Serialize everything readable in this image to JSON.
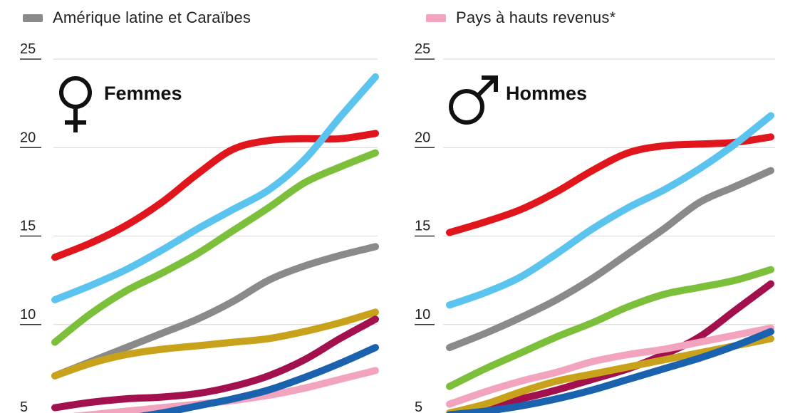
{
  "legend": [
    {
      "label": "Amérique latine et Caraïbes",
      "color": "#8a8a8a"
    },
    {
      "label": "Pays à hauts revenus*",
      "color": "#f2a3bd"
    }
  ],
  "chart_data": [
    {
      "type": "line",
      "title": "Femmes",
      "icon": "female-symbol-icon",
      "yticks": [
        5,
        10,
        15,
        20,
        25
      ],
      "ylim": [
        5,
        25
      ],
      "grid": true,
      "series": [
        {
          "color": "#e0161c",
          "values": [
            13.8,
            14.6,
            15.6,
            16.9,
            18.5,
            19.9,
            20.4,
            20.5,
            20.5,
            20.8
          ]
        },
        {
          "color": "#5bc4ee",
          "values": [
            11.4,
            12.2,
            13.1,
            14.2,
            15.4,
            16.5,
            17.6,
            19.3,
            21.7,
            24.0
          ]
        },
        {
          "color": "#7bbf3a",
          "values": [
            9.0,
            10.6,
            11.9,
            12.9,
            14.0,
            15.3,
            16.6,
            18.0,
            18.9,
            19.7
          ]
        },
        {
          "color": "#8a8a8a",
          "values": [
            7.1,
            7.9,
            8.7,
            9.5,
            10.3,
            11.3,
            12.5,
            13.3,
            13.9,
            14.4
          ]
        },
        {
          "color": "#c9a21c",
          "values": [
            7.1,
            7.8,
            8.3,
            8.6,
            8.8,
            9.0,
            9.2,
            9.6,
            10.1,
            10.7
          ]
        },
        {
          "color": "#a3104e",
          "values": [
            5.3,
            5.6,
            5.8,
            5.9,
            6.1,
            6.5,
            7.1,
            8.0,
            9.2,
            10.3
          ]
        },
        {
          "color": "#f2a3bd",
          "values": [
            4.7,
            4.9,
            5.1,
            5.3,
            5.5,
            5.7,
            6.0,
            6.4,
            6.9,
            7.4
          ]
        },
        {
          "color": "#1a62ad",
          "values": [
            4.3,
            4.5,
            4.7,
            5.0,
            5.4,
            5.8,
            6.3,
            7.0,
            7.8,
            8.7
          ]
        }
      ]
    },
    {
      "type": "line",
      "title": "Hommes",
      "icon": "male-symbol-icon",
      "yticks": [
        5,
        10,
        15,
        20,
        25
      ],
      "ylim": [
        5,
        25
      ],
      "grid": true,
      "series": [
        {
          "color": "#e0161c",
          "values": [
            15.2,
            15.8,
            16.5,
            17.5,
            18.7,
            19.7,
            20.1,
            20.2,
            20.3,
            20.6
          ]
        },
        {
          "color": "#5bc4ee",
          "values": [
            11.1,
            11.8,
            12.7,
            14.0,
            15.4,
            16.6,
            17.6,
            18.8,
            20.2,
            21.8
          ]
        },
        {
          "color": "#8a8a8a",
          "values": [
            8.7,
            9.5,
            10.4,
            11.4,
            12.6,
            14.0,
            15.4,
            16.9,
            17.8,
            18.7
          ]
        },
        {
          "color": "#7bbf3a",
          "values": [
            6.5,
            7.5,
            8.4,
            9.3,
            10.1,
            11.0,
            11.7,
            12.1,
            12.5,
            13.1
          ]
        },
        {
          "color": "#a3104e",
          "values": [
            5.0,
            5.4,
            5.8,
            6.3,
            6.9,
            7.5,
            8.3,
            9.3,
            10.8,
            12.3
          ]
        },
        {
          "color": "#f2a3bd",
          "values": [
            5.5,
            6.2,
            6.8,
            7.3,
            7.9,
            8.3,
            8.6,
            9.0,
            9.4,
            9.8
          ]
        },
        {
          "color": "#c9a21c",
          "values": [
            5.0,
            5.5,
            6.2,
            6.8,
            7.2,
            7.6,
            8.0,
            8.4,
            8.8,
            9.2
          ]
        },
        {
          "color": "#1a62ad",
          "values": [
            4.9,
            5.1,
            5.4,
            5.8,
            6.3,
            6.9,
            7.5,
            8.1,
            8.8,
            9.6
          ]
        }
      ]
    }
  ]
}
